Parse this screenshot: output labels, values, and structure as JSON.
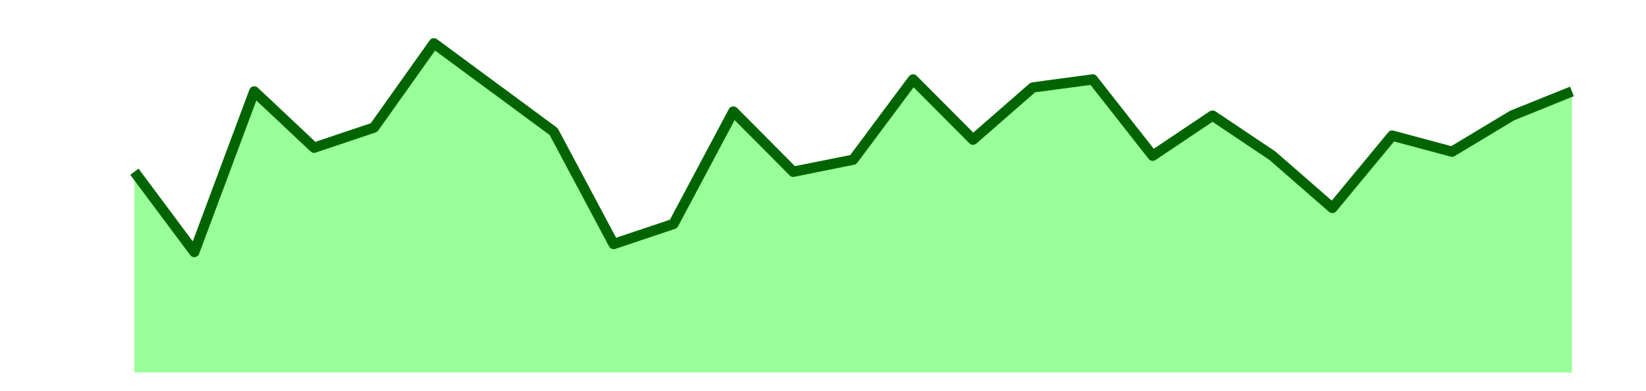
{
  "chart_data": {
    "type": "area",
    "title": "",
    "xlabel": "",
    "ylabel": "",
    "x": [
      0,
      1,
      2,
      3,
      4,
      5,
      6,
      7,
      8,
      9,
      10,
      11,
      12,
      13,
      14,
      15,
      16,
      17,
      18,
      19,
      20,
      21,
      22,
      23,
      24
    ],
    "values": [
      62,
      42,
      82,
      68,
      73,
      94,
      83,
      72,
      44,
      49,
      77,
      62,
      65,
      85,
      70,
      83,
      85,
      66,
      76,
      66,
      53,
      71,
      67,
      76,
      82
    ],
    "ylim": [
      12,
      100
    ],
    "grid": false,
    "legend": "none",
    "colors": {
      "fill": "#99ff99",
      "line": "#006400"
    }
  }
}
